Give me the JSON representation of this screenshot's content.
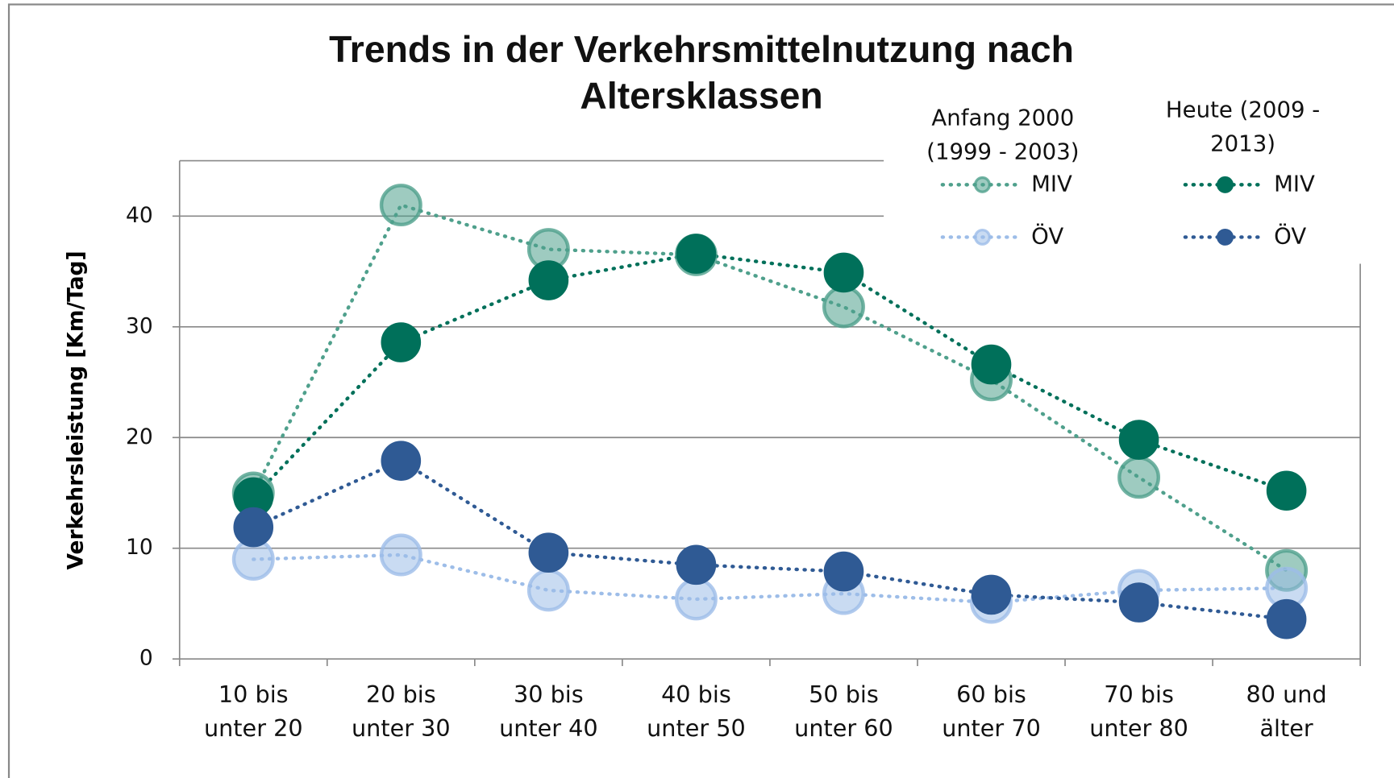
{
  "chart_data": {
    "type": "line",
    "title": "Trends in der Verkehrsmittelnutzung nach Altersklassen",
    "y_label": "Verkehrsleistung [Km/Tag]",
    "categories": [
      "10 bis unter 20",
      "20 bis unter 30",
      "30 bis unter 40",
      "40 bis unter 50",
      "50 bis unter 60",
      "60 bis unter 70",
      "70 bis unter 80",
      "80 und älter"
    ],
    "legend_groups": [
      "Anfang 2000 (1999 - 2003)",
      "Heute (2009 - 2013)"
    ],
    "series": [
      {
        "name": "MIV",
        "group": 0,
        "color": "#4fa08c",
        "values": [
          15.0,
          41.0,
          37.0,
          36.5,
          31.8,
          25.2,
          16.4,
          8.0
        ]
      },
      {
        "name": "ÖV",
        "group": 0,
        "color": "#9dbde8",
        "values": [
          9.0,
          9.4,
          6.2,
          5.4,
          5.9,
          5.1,
          6.2,
          6.4
        ]
      },
      {
        "name": "MIV",
        "group": 1,
        "color": "#00705a",
        "values": [
          14.6,
          28.6,
          34.2,
          36.6,
          34.9,
          26.6,
          19.8,
          15.2
        ]
      },
      {
        "name": "ÖV",
        "group": 1,
        "color": "#2f5a94",
        "values": [
          11.9,
          17.9,
          9.6,
          8.5,
          7.9,
          5.8,
          5.1,
          3.6
        ]
      }
    ],
    "ylim": [
      0,
      45
    ],
    "yticks": [
      0,
      10,
      20,
      30,
      40
    ],
    "grid": true
  }
}
